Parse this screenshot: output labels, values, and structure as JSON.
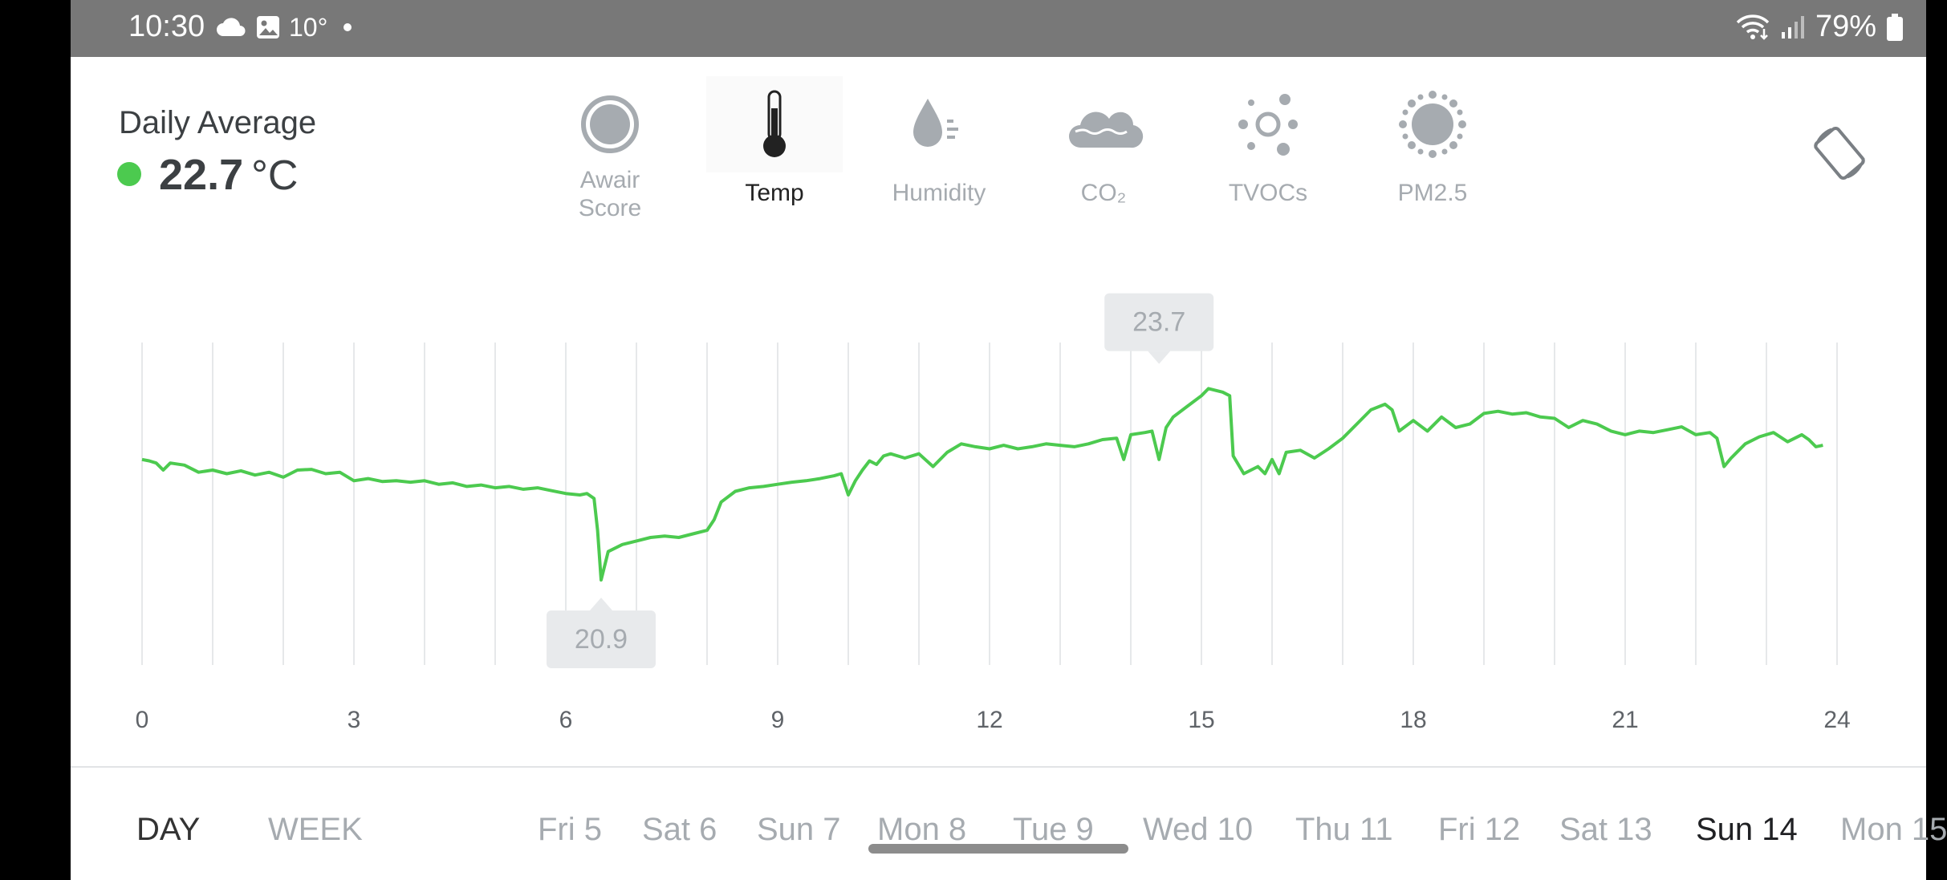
{
  "status_bar": {
    "time": "10:30",
    "weather_temp": "10°",
    "battery": "79%"
  },
  "daily": {
    "title": "Daily Average",
    "value": "22.7",
    "unit": "°C",
    "status_color": "#4cca4f"
  },
  "metrics": [
    {
      "label": "Awair\nScore",
      "icon": "score-ring-icon",
      "active": false
    },
    {
      "label": "Temp",
      "icon": "thermometer-icon",
      "active": true
    },
    {
      "label": "Humidity",
      "icon": "droplet-icon",
      "active": false
    },
    {
      "label": "CO₂",
      "icon": "cloud-icon",
      "active": false
    },
    {
      "label": "TVOCs",
      "icon": "tvoc-dots-icon",
      "active": false
    },
    {
      "label": "PM2.5",
      "icon": "particle-icon",
      "active": false
    }
  ],
  "chart_data": {
    "type": "line",
    "series_color": "#4cca4f",
    "x_ticks": [
      "0",
      "3",
      "6",
      "9",
      "12",
      "15",
      "18",
      "21",
      "24"
    ],
    "xlim": [
      0,
      24
    ],
    "ylim": [
      19.7,
      24.25
    ],
    "grid": "vertical",
    "min_label": {
      "x": 6.5,
      "y": 20.9,
      "text": "20.9"
    },
    "max_label": {
      "x": 14.4,
      "y": 23.7,
      "text": "23.7"
    },
    "points": [
      [
        0,
        22.6
      ],
      [
        0.1,
        22.58
      ],
      [
        0.2,
        22.55
      ],
      [
        0.3,
        22.45
      ],
      [
        0.4,
        22.55
      ],
      [
        0.6,
        22.52
      ],
      [
        0.8,
        22.42
      ],
      [
        1.0,
        22.45
      ],
      [
        1.2,
        22.4
      ],
      [
        1.4,
        22.44
      ],
      [
        1.6,
        22.38
      ],
      [
        1.8,
        22.42
      ],
      [
        2.0,
        22.35
      ],
      [
        2.2,
        22.45
      ],
      [
        2.4,
        22.46
      ],
      [
        2.6,
        22.4
      ],
      [
        2.8,
        22.42
      ],
      [
        3.0,
        22.3
      ],
      [
        3.2,
        22.33
      ],
      [
        3.4,
        22.29
      ],
      [
        3.6,
        22.3
      ],
      [
        3.8,
        22.28
      ],
      [
        4.0,
        22.3
      ],
      [
        4.2,
        22.25
      ],
      [
        4.4,
        22.27
      ],
      [
        4.6,
        22.22
      ],
      [
        4.8,
        22.24
      ],
      [
        5.0,
        22.2
      ],
      [
        5.2,
        22.22
      ],
      [
        5.4,
        22.18
      ],
      [
        5.6,
        22.2
      ],
      [
        5.8,
        22.16
      ],
      [
        6.0,
        22.12
      ],
      [
        6.2,
        22.1
      ],
      [
        6.3,
        22.12
      ],
      [
        6.4,
        22.05
      ],
      [
        6.45,
        21.6
      ],
      [
        6.5,
        20.9
      ],
      [
        6.6,
        21.3
      ],
      [
        6.8,
        21.4
      ],
      [
        7.0,
        21.45
      ],
      [
        7.2,
        21.5
      ],
      [
        7.4,
        21.52
      ],
      [
        7.6,
        21.5
      ],
      [
        7.8,
        21.55
      ],
      [
        8.0,
        21.6
      ],
      [
        8.1,
        21.75
      ],
      [
        8.2,
        22.0
      ],
      [
        8.4,
        22.15
      ],
      [
        8.6,
        22.2
      ],
      [
        8.8,
        22.22
      ],
      [
        9.0,
        22.25
      ],
      [
        9.2,
        22.28
      ],
      [
        9.4,
        22.3
      ],
      [
        9.6,
        22.33
      ],
      [
        9.8,
        22.37
      ],
      [
        9.9,
        22.4
      ],
      [
        10.0,
        22.1
      ],
      [
        10.1,
        22.3
      ],
      [
        10.2,
        22.45
      ],
      [
        10.3,
        22.58
      ],
      [
        10.4,
        22.53
      ],
      [
        10.5,
        22.65
      ],
      [
        10.6,
        22.68
      ],
      [
        10.8,
        22.62
      ],
      [
        11.0,
        22.68
      ],
      [
        11.2,
        22.5
      ],
      [
        11.4,
        22.7
      ],
      [
        11.6,
        22.82
      ],
      [
        11.8,
        22.78
      ],
      [
        12.0,
        22.75
      ],
      [
        12.2,
        22.8
      ],
      [
        12.4,
        22.75
      ],
      [
        12.6,
        22.78
      ],
      [
        12.8,
        22.82
      ],
      [
        13.0,
        22.8
      ],
      [
        13.2,
        22.78
      ],
      [
        13.4,
        22.82
      ],
      [
        13.6,
        22.88
      ],
      [
        13.8,
        22.9
      ],
      [
        13.9,
        22.6
      ],
      [
        14.0,
        22.95
      ],
      [
        14.2,
        22.98
      ],
      [
        14.3,
        23.0
      ],
      [
        14.4,
        22.6
      ],
      [
        14.5,
        23.05
      ],
      [
        14.6,
        23.2
      ],
      [
        14.8,
        23.35
      ],
      [
        15.0,
        23.5
      ],
      [
        15.1,
        23.6
      ],
      [
        15.3,
        23.55
      ],
      [
        15.4,
        23.5
      ],
      [
        15.45,
        22.65
      ],
      [
        15.6,
        22.4
      ],
      [
        15.8,
        22.5
      ],
      [
        15.9,
        22.4
      ],
      [
        16.0,
        22.6
      ],
      [
        16.1,
        22.4
      ],
      [
        16.2,
        22.7
      ],
      [
        16.4,
        22.73
      ],
      [
        16.6,
        22.62
      ],
      [
        16.8,
        22.75
      ],
      [
        17.0,
        22.9
      ],
      [
        17.2,
        23.1
      ],
      [
        17.4,
        23.3
      ],
      [
        17.6,
        23.38
      ],
      [
        17.7,
        23.3
      ],
      [
        17.8,
        23.0
      ],
      [
        18.0,
        23.15
      ],
      [
        18.2,
        23.0
      ],
      [
        18.4,
        23.2
      ],
      [
        18.6,
        23.05
      ],
      [
        18.8,
        23.1
      ],
      [
        19.0,
        23.25
      ],
      [
        19.2,
        23.28
      ],
      [
        19.4,
        23.24
      ],
      [
        19.6,
        23.26
      ],
      [
        19.8,
        23.2
      ],
      [
        20.0,
        23.18
      ],
      [
        20.2,
        23.05
      ],
      [
        20.4,
        23.15
      ],
      [
        20.6,
        23.1
      ],
      [
        20.8,
        23.0
      ],
      [
        21.0,
        22.95
      ],
      [
        21.2,
        23.0
      ],
      [
        21.4,
        22.98
      ],
      [
        21.6,
        23.02
      ],
      [
        21.8,
        23.06
      ],
      [
        22.0,
        22.95
      ],
      [
        22.2,
        22.98
      ],
      [
        22.3,
        22.9
      ],
      [
        22.4,
        22.5
      ],
      [
        22.5,
        22.62
      ],
      [
        22.7,
        22.82
      ],
      [
        22.9,
        22.92
      ],
      [
        23.1,
        22.98
      ],
      [
        23.3,
        22.85
      ],
      [
        23.5,
        22.95
      ],
      [
        23.6,
        22.88
      ],
      [
        23.7,
        22.78
      ],
      [
        23.8,
        22.8
      ]
    ]
  },
  "bottom_tabs": {
    "day": "DAY",
    "week": "WEEK"
  },
  "dates": [
    {
      "label": "Fri 5",
      "active": false
    },
    {
      "label": "Sat 6",
      "active": false
    },
    {
      "label": "Sun 7",
      "active": false
    },
    {
      "label": "Mon 8",
      "active": false
    },
    {
      "label": "Tue 9",
      "active": false
    },
    {
      "label": "Wed 10",
      "active": false
    },
    {
      "label": "Thu 11",
      "active": false
    },
    {
      "label": "Fri 12",
      "active": false
    },
    {
      "label": "Sat 13",
      "active": false
    },
    {
      "label": "Sun 14",
      "active": true
    },
    {
      "label": "Mon 15",
      "active": false
    }
  ]
}
